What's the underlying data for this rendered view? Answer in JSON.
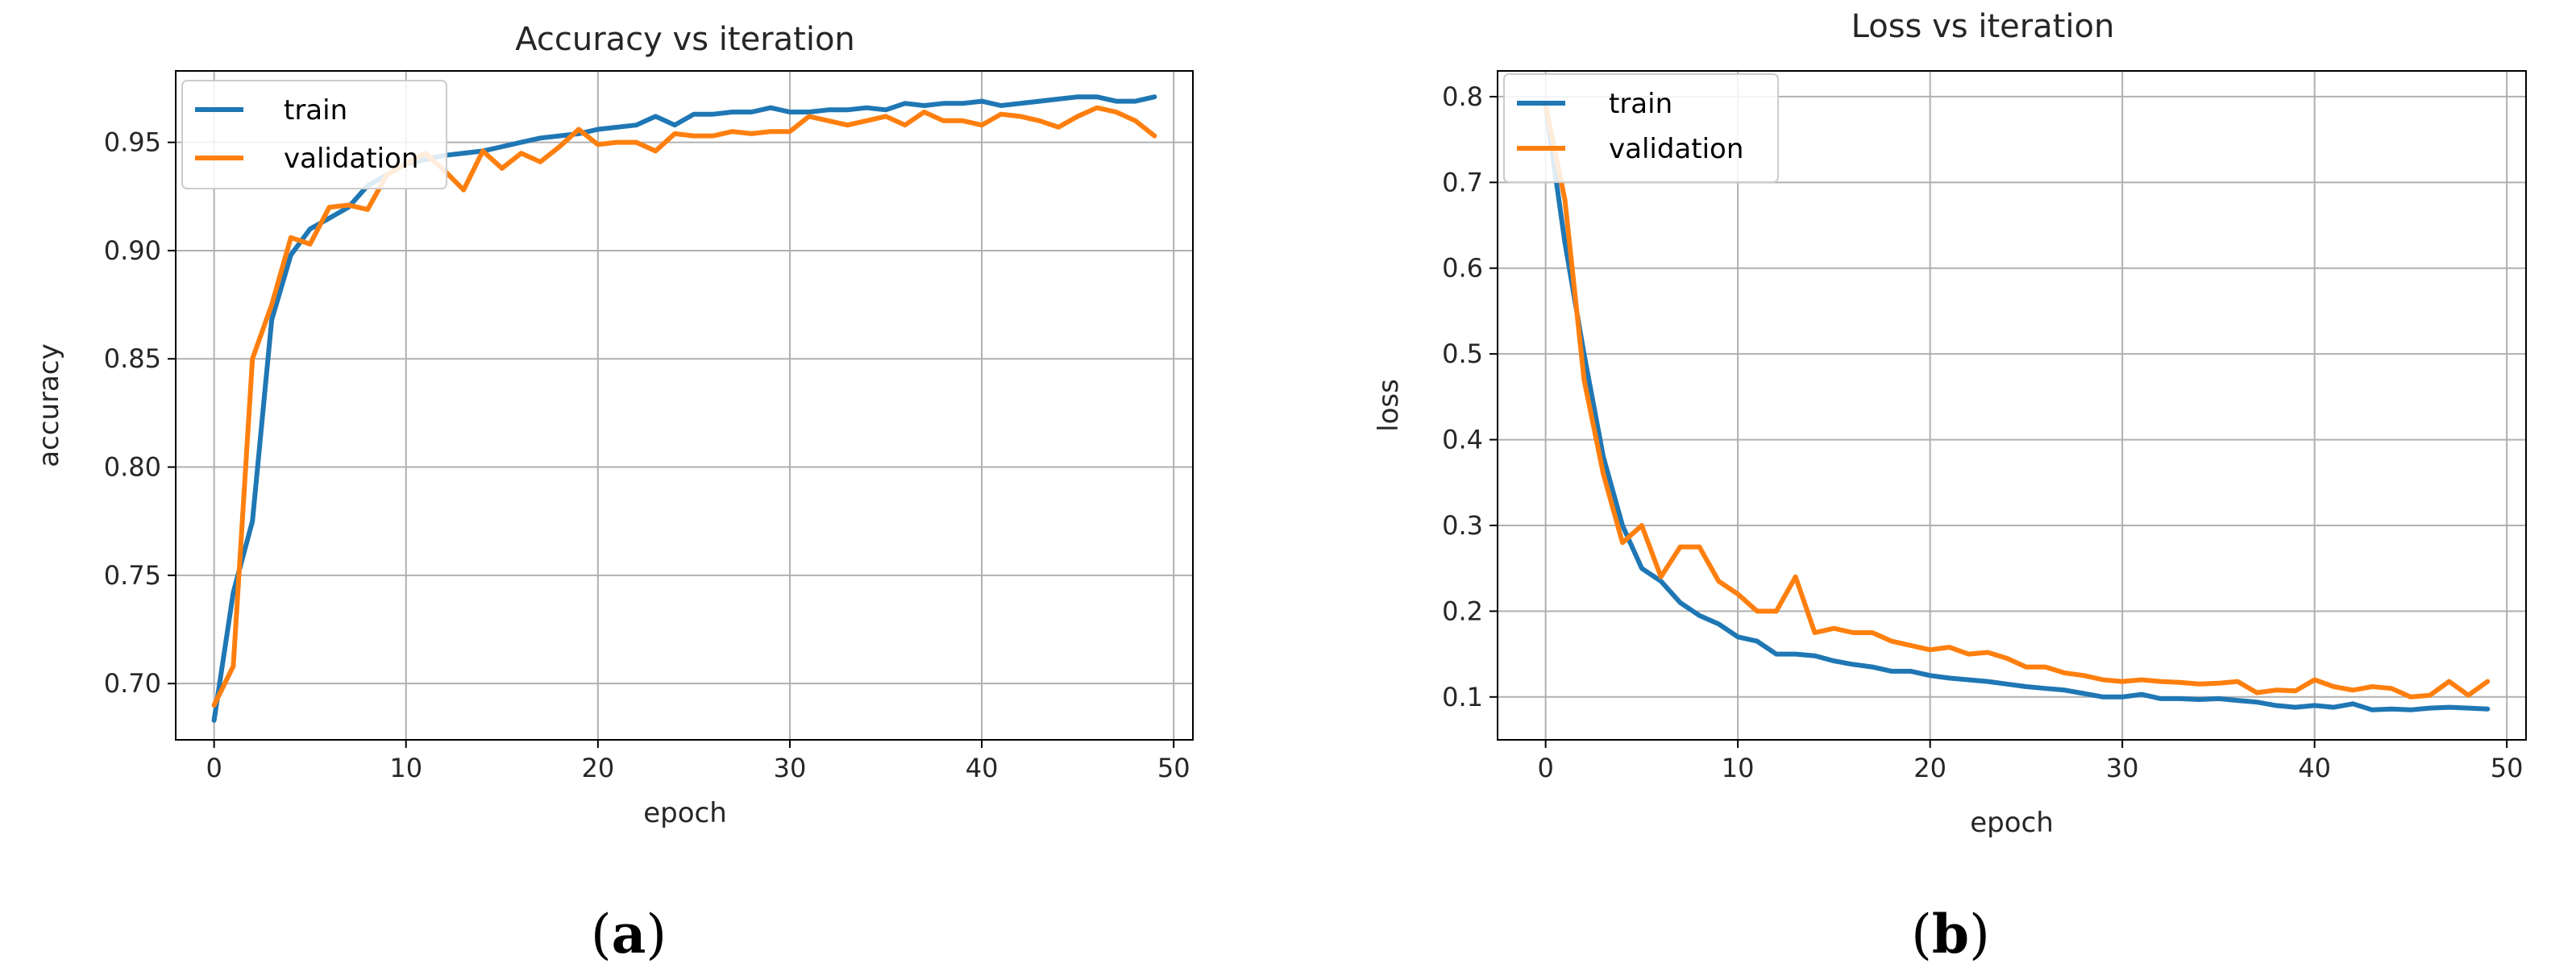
{
  "chart_data": [
    {
      "type": "line",
      "title": "Accuracy vs iteration",
      "xlabel": "epoch",
      "ylabel": "accuracy",
      "xlim": [
        -2,
        51
      ],
      "ylim": [
        0.674,
        0.983
      ],
      "xticks": [
        0,
        10,
        20,
        30,
        40,
        50
      ],
      "xtick_labels": [
        "0",
        "10",
        "20",
        "30",
        "40",
        "50"
      ],
      "yticks": [
        0.7,
        0.75,
        0.8,
        0.85,
        0.9,
        0.95
      ],
      "ytick_labels": [
        "0.70",
        "0.75",
        "0.80",
        "0.85",
        "0.90",
        "0.95"
      ],
      "grid": true,
      "legend_position": "top-left",
      "series": [
        {
          "name": "train",
          "color": "#1f77b4",
          "x": [
            0,
            1,
            2,
            3,
            4,
            5,
            6,
            7,
            8,
            9,
            10,
            11,
            12,
            13,
            14,
            15,
            16,
            17,
            18,
            19,
            20,
            21,
            22,
            23,
            24,
            25,
            26,
            27,
            28,
            29,
            30,
            31,
            32,
            33,
            34,
            35,
            36,
            37,
            38,
            39,
            40,
            41,
            42,
            43,
            44,
            45,
            46,
            47,
            48,
            49
          ],
          "values": [
            0.683,
            0.742,
            0.775,
            0.868,
            0.898,
            0.91,
            0.915,
            0.92,
            0.93,
            0.935,
            0.94,
            0.942,
            0.944,
            0.945,
            0.946,
            0.948,
            0.95,
            0.952,
            0.953,
            0.954,
            0.956,
            0.957,
            0.958,
            0.962,
            0.958,
            0.963,
            0.963,
            0.964,
            0.964,
            0.966,
            0.964,
            0.964,
            0.965,
            0.965,
            0.966,
            0.965,
            0.968,
            0.967,
            0.968,
            0.968,
            0.969,
            0.967,
            0.968,
            0.969,
            0.97,
            0.971,
            0.971,
            0.969,
            0.969,
            0.971
          ]
        },
        {
          "name": "validation",
          "color": "#ff7f0e",
          "x": [
            0,
            1,
            2,
            3,
            4,
            5,
            6,
            7,
            8,
            9,
            10,
            11,
            12,
            13,
            14,
            15,
            16,
            17,
            18,
            19,
            20,
            21,
            22,
            23,
            24,
            25,
            26,
            27,
            28,
            29,
            30,
            31,
            32,
            33,
            34,
            35,
            36,
            37,
            38,
            39,
            40,
            41,
            42,
            43,
            44,
            45,
            46,
            47,
            48,
            49
          ],
          "values": [
            0.69,
            0.708,
            0.85,
            0.875,
            0.906,
            0.903,
            0.92,
            0.921,
            0.919,
            0.935,
            0.94,
            0.945,
            0.937,
            0.928,
            0.946,
            0.938,
            0.945,
            0.941,
            0.948,
            0.956,
            0.949,
            0.95,
            0.95,
            0.946,
            0.954,
            0.953,
            0.953,
            0.955,
            0.954,
            0.955,
            0.955,
            0.962,
            0.96,
            0.958,
            0.96,
            0.962,
            0.958,
            0.964,
            0.96,
            0.96,
            0.958,
            0.963,
            0.962,
            0.96,
            0.957,
            0.962,
            0.966,
            0.964,
            0.96,
            0.953
          ]
        }
      ]
    },
    {
      "type": "line",
      "title": "Loss vs iteration",
      "xlabel": "epoch",
      "ylabel": "loss",
      "xlim": [
        -2.5,
        51
      ],
      "ylim": [
        0.05,
        0.83
      ],
      "xticks": [
        0,
        10,
        20,
        30,
        40,
        50
      ],
      "xtick_labels": [
        "0",
        "10",
        "20",
        "30",
        "40",
        "50"
      ],
      "yticks": [
        0.1,
        0.2,
        0.3,
        0.4,
        0.5,
        0.6,
        0.7,
        0.8
      ],
      "ytick_labels": [
        "0.1",
        "0.2",
        "0.3",
        "0.4",
        "0.5",
        "0.6",
        "0.7",
        "0.8"
      ],
      "grid": true,
      "legend_position": "top-left",
      "series": [
        {
          "name": "train",
          "color": "#1f77b4",
          "x": [
            0,
            1,
            2,
            3,
            4,
            5,
            6,
            7,
            8,
            9,
            10,
            11,
            12,
            13,
            14,
            15,
            16,
            17,
            18,
            19,
            20,
            21,
            22,
            23,
            24,
            25,
            26,
            27,
            28,
            29,
            30,
            31,
            32,
            33,
            34,
            35,
            36,
            37,
            38,
            39,
            40,
            41,
            42,
            43,
            44,
            45,
            46,
            47,
            48,
            49
          ],
          "values": [
            0.79,
            0.63,
            0.5,
            0.38,
            0.3,
            0.25,
            0.235,
            0.21,
            0.195,
            0.185,
            0.17,
            0.165,
            0.15,
            0.15,
            0.148,
            0.142,
            0.138,
            0.135,
            0.13,
            0.13,
            0.125,
            0.122,
            0.12,
            0.118,
            0.115,
            0.112,
            0.11,
            0.108,
            0.104,
            0.1,
            0.1,
            0.103,
            0.098,
            0.098,
            0.097,
            0.098,
            0.096,
            0.094,
            0.09,
            0.088,
            0.09,
            0.088,
            0.092,
            0.085,
            0.086,
            0.085,
            0.087,
            0.088,
            0.087,
            0.086
          ]
        },
        {
          "name": "validation",
          "color": "#ff7f0e",
          "x": [
            0,
            1,
            2,
            3,
            4,
            5,
            6,
            7,
            8,
            9,
            10,
            11,
            12,
            13,
            14,
            15,
            16,
            17,
            18,
            19,
            20,
            21,
            22,
            23,
            24,
            25,
            26,
            27,
            28,
            29,
            30,
            31,
            32,
            33,
            34,
            35,
            36,
            37,
            38,
            39,
            40,
            41,
            42,
            43,
            44,
            45,
            46,
            47,
            48,
            49
          ],
          "values": [
            0.79,
            0.68,
            0.47,
            0.36,
            0.28,
            0.3,
            0.24,
            0.275,
            0.275,
            0.235,
            0.22,
            0.2,
            0.2,
            0.24,
            0.175,
            0.18,
            0.175,
            0.175,
            0.165,
            0.16,
            0.155,
            0.158,
            0.15,
            0.152,
            0.145,
            0.135,
            0.135,
            0.128,
            0.125,
            0.12,
            0.118,
            0.12,
            0.118,
            0.117,
            0.115,
            0.116,
            0.118,
            0.105,
            0.108,
            0.107,
            0.12,
            0.112,
            0.108,
            0.112,
            0.11,
            0.1,
            0.102,
            0.118,
            0.102,
            0.118
          ]
        }
      ]
    }
  ],
  "captions": [
    {
      "open": "(",
      "letter": "a",
      "close": ")"
    },
    {
      "open": "(",
      "letter": "b",
      "close": ")"
    }
  ]
}
